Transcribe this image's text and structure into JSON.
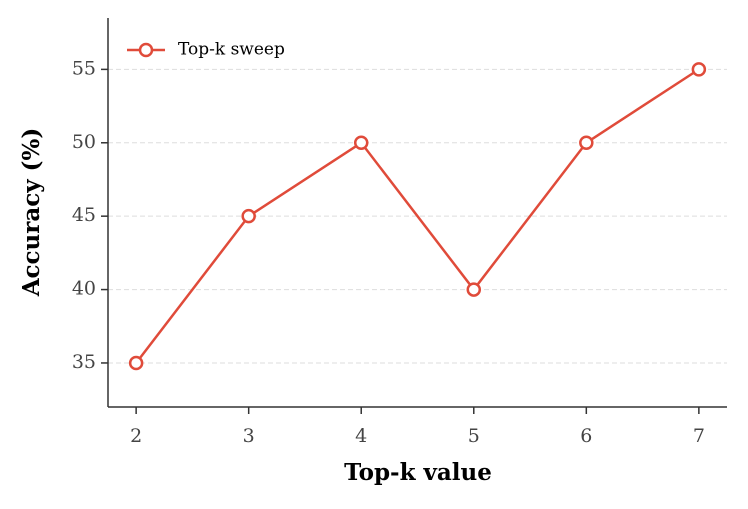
{
  "chart_data": {
    "type": "line",
    "x_label": "Top-k value",
    "y_label": "Accuracy (%)",
    "x": [
      2,
      3,
      4,
      5,
      6,
      7
    ],
    "series": [
      {
        "name": "Top-k sweep",
        "color": "#e04b3a",
        "values": [
          35,
          45,
          50,
          40,
          50,
          55
        ]
      }
    ],
    "xlim": [
      1.75,
      7.25
    ],
    "xticks": [
      2,
      3,
      4,
      5,
      6,
      7
    ],
    "ylim": [
      32,
      58.5
    ],
    "yticks": [
      35,
      40,
      45,
      50,
      55
    ],
    "grid": true,
    "legend": "upper left"
  }
}
